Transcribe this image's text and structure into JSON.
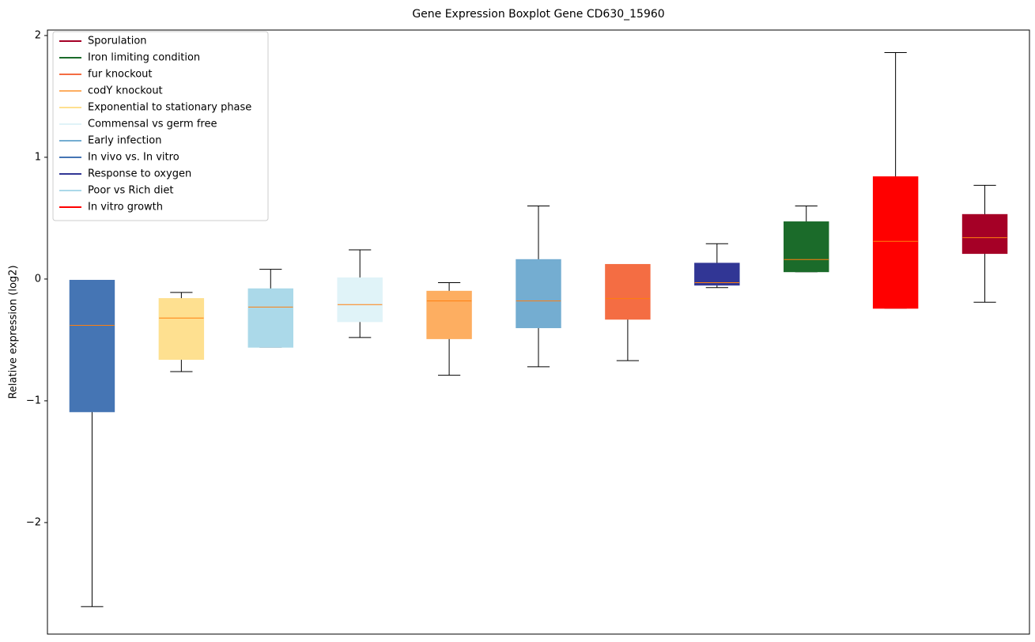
{
  "chart_data": {
    "type": "boxplot",
    "title": "Gene Expression Boxplot Gene CD630_15960",
    "y_label": "Relative expression (log2)",
    "xlim": [
      0.5,
      11.5
    ],
    "ylim": [
      -2.916,
      2.045
    ],
    "yticks": [
      {
        "value": -2,
        "label": "−2"
      },
      {
        "value": -1,
        "label": "−1"
      },
      0,
      1,
      2
    ],
    "median_color": "#ff7f0e",
    "whisker_color": "#000000",
    "legend_position": "upper left",
    "series": [
      {
        "name": "Sporulation",
        "color": "#a50026",
        "x": 11,
        "whislo": -0.19,
        "q1": 0.21,
        "med": 0.34,
        "q3": 0.53,
        "whishi": 0.77
      },
      {
        "name": "Iron limiting condition",
        "color": "#1b6b2a",
        "x": 9,
        "whislo": 0.06,
        "q1": 0.06,
        "med": 0.16,
        "q3": 0.47,
        "whishi": 0.6
      },
      {
        "name": "fur knockout",
        "color": "#f46d43",
        "x": 7,
        "whislo": -0.67,
        "q1": -0.33,
        "med": -0.16,
        "q3": 0.12,
        "whishi": 0.12
      },
      {
        "name": "codY knockout",
        "color": "#fdae61",
        "x": 5,
        "whislo": -0.79,
        "q1": -0.49,
        "med": -0.18,
        "q3": -0.1,
        "whishi": -0.03
      },
      {
        "name": "Exponential to stationary phase",
        "color": "#fee090",
        "x": 2,
        "whislo": -0.76,
        "q1": -0.66,
        "med": -0.32,
        "q3": -0.16,
        "whishi": -0.11
      },
      {
        "name": "Commensal vs germ free",
        "color": "#e0f3f8",
        "x": 4,
        "whislo": -0.48,
        "q1": -0.35,
        "med": -0.21,
        "q3": 0.01,
        "whishi": 0.24
      },
      {
        "name": "Early infection",
        "color": "#74add1",
        "x": 6,
        "whislo": -0.72,
        "q1": -0.4,
        "med": -0.18,
        "q3": 0.16,
        "whishi": 0.6
      },
      {
        "name": "In vivo vs. In vitro",
        "color": "#4575b4",
        "x": 1,
        "whislo": -2.69,
        "q1": -1.09,
        "med": -0.38,
        "q3": -0.01,
        "whishi": -0.01
      },
      {
        "name": "Response to oxygen",
        "color": "#313695",
        "x": 8,
        "whislo": -0.07,
        "q1": -0.05,
        "med": -0.03,
        "q3": 0.13,
        "whishi": 0.29
      },
      {
        "name": "Poor vs Rich diet",
        "color": "#abd9e9",
        "x": 3,
        "whislo": -0.56,
        "q1": -0.56,
        "med": -0.23,
        "q3": -0.08,
        "whishi": 0.08
      },
      {
        "name": "In vitro growth",
        "color": "#ff0000",
        "x": 10,
        "whislo": -0.24,
        "q1": -0.24,
        "med": 0.31,
        "q3": 0.84,
        "whishi": 1.86
      }
    ]
  }
}
